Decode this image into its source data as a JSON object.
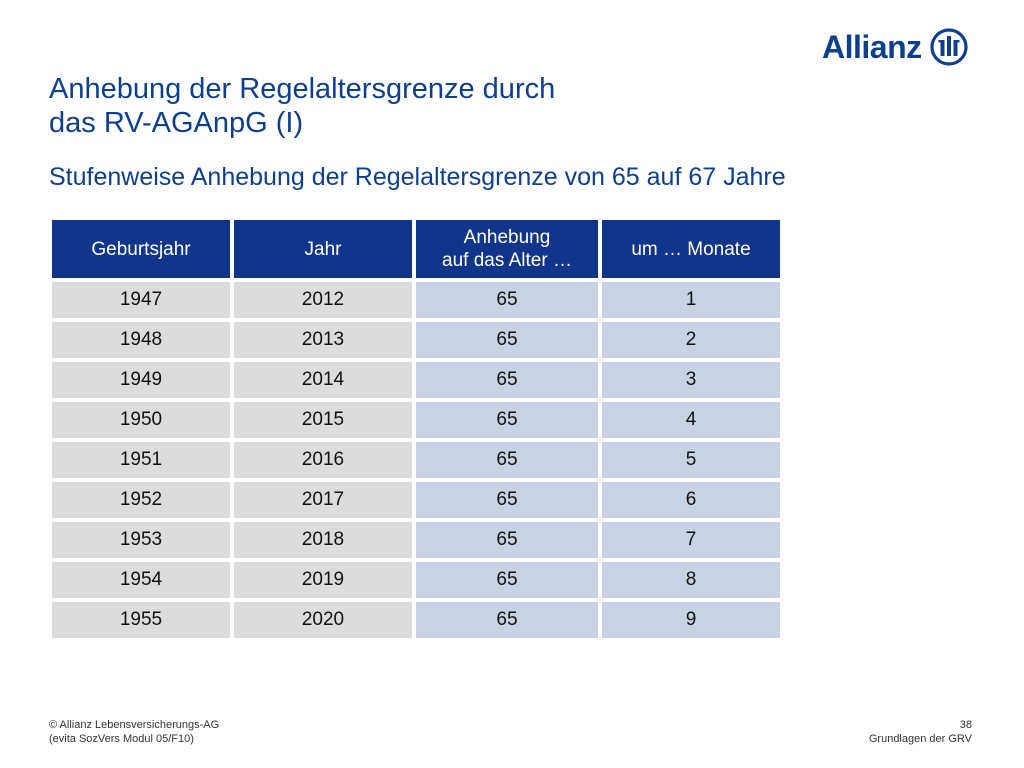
{
  "brand": {
    "name": "Allianz",
    "color": "#0e3f8f",
    "icon": "allianz-eagle-mark"
  },
  "title": {
    "line1": "Anhebung der Regelaltersgrenze durch",
    "line2": "das RV-AGAnpG (I)"
  },
  "subtitle": "Stufenweise Anhebung der Regelaltersgrenze von 65 auf 67 Jahre",
  "table": {
    "headers": [
      [
        "Geburtsjahr"
      ],
      [
        "Jahr"
      ],
      [
        "Anhebung",
        "auf das Alter …"
      ],
      [
        "um … Monate"
      ]
    ],
    "rows": [
      [
        "1947",
        "2012",
        "65",
        "1"
      ],
      [
        "1948",
        "2013",
        "65",
        "2"
      ],
      [
        "1949",
        "2014",
        "65",
        "3"
      ],
      [
        "1950",
        "2015",
        "65",
        "4"
      ],
      [
        "1951",
        "2016",
        "65",
        "5"
      ],
      [
        "1952",
        "2017",
        "65",
        "6"
      ],
      [
        "1953",
        "2018",
        "65",
        "7"
      ],
      [
        "1954",
        "2019",
        "65",
        "8"
      ],
      [
        "1955",
        "2020",
        "65",
        "9"
      ]
    ],
    "colors": {
      "header": "#10358a",
      "cell_grey": "#dcdcdc",
      "cell_blue": "#c7d2e3"
    }
  },
  "footer": {
    "left_line1": "© Allianz Lebensversicherungs-AG",
    "left_line2": "(evita SozVers Modul 05/F10)",
    "page_number": "38",
    "section": "Grundlagen der GRV"
  }
}
